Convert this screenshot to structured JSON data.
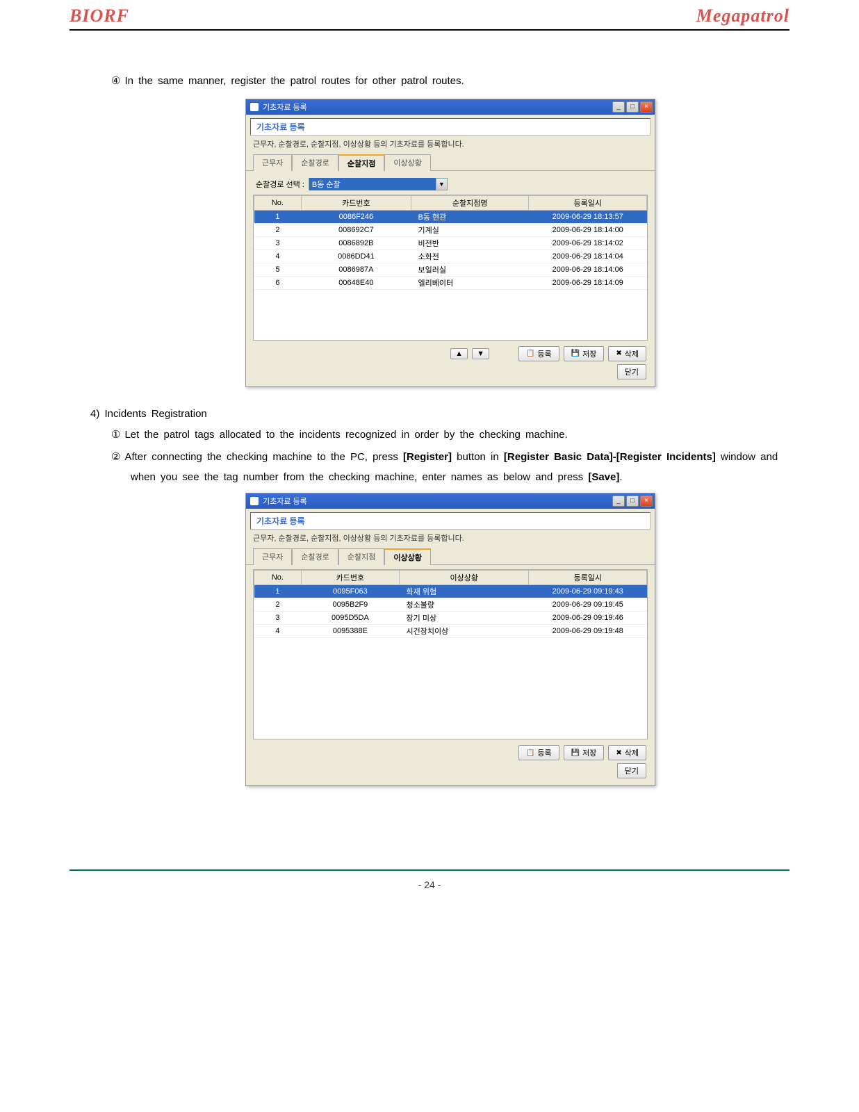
{
  "header": {
    "brand_left": "BIORF",
    "brand_right": "Megapatrol"
  },
  "step4": {
    "prefix": "④",
    "text": "In  the  same  manner,  register  the  patrol  routes  for  other  patrol  routes."
  },
  "section4": {
    "label": "4)  Incidents  Registration",
    "item1_prefix": "①",
    "item1_text": "Let  the  patrol  tags  allocated  to  the  incidents  recognized  in  order  by  the  checking machine.",
    "item2_prefix": "②",
    "item2_a": "After  connecting  the  checking  machine  to  the  PC,  press  ",
    "item2_b": "[Register]",
    "item2_c": "  button  in  ",
    "item2_d": "[Register Basic  Data]-[Register  Incidents]",
    "item2_e": "  window  and  when  you  see  the  tag  number  from  the checking  machine,  enter  names  as  below  and  press  ",
    "item2_f": "[Save]",
    "item2_g": "."
  },
  "win": {
    "title": "기초자료 등록",
    "tab_title": "기초자료 등록",
    "desc": "근무자, 순찰경로, 순찰지점, 이상상황 등의 기초자료를 등록합니다.",
    "tabs": {
      "t1": "근무자",
      "t2": "순찰경로",
      "t3": "순찰지점",
      "t4": "이상상황"
    },
    "route_label": "순찰경로 선택 :",
    "route_value": "B동 순찰",
    "buttons": {
      "register": "등록",
      "save": "저장",
      "delete": "삭제",
      "close": "닫기"
    }
  },
  "table1": {
    "cols": {
      "no": "No.",
      "card": "카드번호",
      "point": "순찰지점명",
      "date": "등록일시"
    },
    "rows": [
      {
        "no": "1",
        "card": "0086F246",
        "point": "B동 현관",
        "date": "2009-06-29 18:13:57",
        "sel": true
      },
      {
        "no": "2",
        "card": "008692C7",
        "point": "기계실",
        "date": "2009-06-29 18:14:00"
      },
      {
        "no": "3",
        "card": "0086892B",
        "point": "비전반",
        "date": "2009-06-29 18:14:02"
      },
      {
        "no": "4",
        "card": "0086DD41",
        "point": "소화전",
        "date": "2009-06-29 18:14:04"
      },
      {
        "no": "5",
        "card": "0086987A",
        "point": "보일러실",
        "date": "2009-06-29 18:14:06"
      },
      {
        "no": "6",
        "card": "00648E40",
        "point": "엘리베이터",
        "date": "2009-06-29 18:14:09"
      }
    ]
  },
  "table2": {
    "cols": {
      "no": "No.",
      "card": "카드번호",
      "incident": "이상상황",
      "date": "등록일시"
    },
    "rows": [
      {
        "no": "1",
        "card": "0095F063",
        "incident": "화재 위험",
        "date": "2009-06-29 09:19:43",
        "sel": true
      },
      {
        "no": "2",
        "card": "0095B2F9",
        "incident": "청소불량",
        "date": "2009-06-29 09:19:45"
      },
      {
        "no": "3",
        "card": "0095D5DA",
        "incident": "장기 미상",
        "date": "2009-06-29 09:19:46"
      },
      {
        "no": "4",
        "card": "0095388E",
        "incident": "시건장치이상",
        "date": "2009-06-29 09:19:48"
      }
    ]
  },
  "footer": {
    "page": "- 24 -"
  }
}
